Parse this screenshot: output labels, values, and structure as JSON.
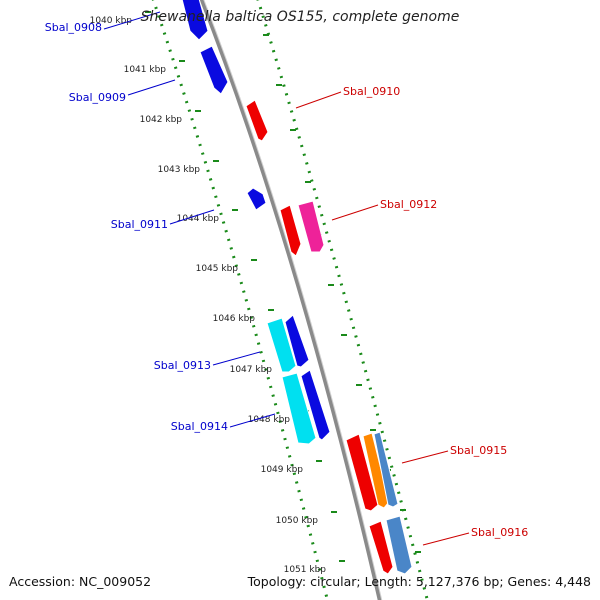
{
  "title": "Shewanella baltica OS155, complete genome",
  "accession_text": "Accession: NC_009052",
  "summary_text": "Topology: circular; Length: 5,127,376 bp; Genes: 4,448",
  "ticks": [
    "1040 kbp",
    "1041 kbp",
    "1042 kbp",
    "1043 kbp",
    "1044 kbp",
    "1045 kbp",
    "1046 kbp",
    "1047 kbp",
    "1048 kbp",
    "1049 kbp",
    "1050 kbp",
    "1051 kbp"
  ],
  "colors": {
    "backbone": "#8a8a8a",
    "dotted_track": "#1a8a1a",
    "forward_label": "#cc0000",
    "reverse_label": "#0000cc",
    "blue_gene": "#0a0ae0",
    "red_gene": "#ee0000",
    "magenta_gene": "#ee2299",
    "cyan_gene": "#00e0f0",
    "orange_gene": "#ff8800",
    "steel_gene": "#4a86c8"
  },
  "genes": [
    {
      "label": "Sbal_0908",
      "strand": "reverse",
      "color": "blue_gene"
    },
    {
      "label": "Sbal_0909",
      "strand": "reverse",
      "color": "blue_gene"
    },
    {
      "label": "Sbal_0910",
      "strand": "forward",
      "color": "red_gene"
    },
    {
      "label": "Sbal_0911",
      "strand": "reverse",
      "color": "blue_gene"
    },
    {
      "label": "Sbal_0912",
      "strand": "forward",
      "color": "red_gene"
    },
    {
      "label": "",
      "strand": "forward",
      "color": "magenta_gene"
    },
    {
      "label": "Sbal_0913",
      "strand": "reverse",
      "color": "cyan_gene"
    },
    {
      "label": "",
      "strand": "reverse",
      "color": "blue_gene"
    },
    {
      "label": "Sbal_0914",
      "strand": "reverse",
      "color": "cyan_gene"
    },
    {
      "label": "",
      "strand": "reverse",
      "color": "blue_gene"
    },
    {
      "label": "Sbal_0915",
      "strand": "forward",
      "color": "red_gene"
    },
    {
      "label": "",
      "strand": "forward",
      "color": "orange_gene"
    },
    {
      "label": "",
      "strand": "forward",
      "color": "steel_gene"
    },
    {
      "label": "Sbal_0916",
      "strand": "forward",
      "color": "red_gene"
    },
    {
      "label": "",
      "strand": "forward",
      "color": "steel_gene"
    }
  ]
}
